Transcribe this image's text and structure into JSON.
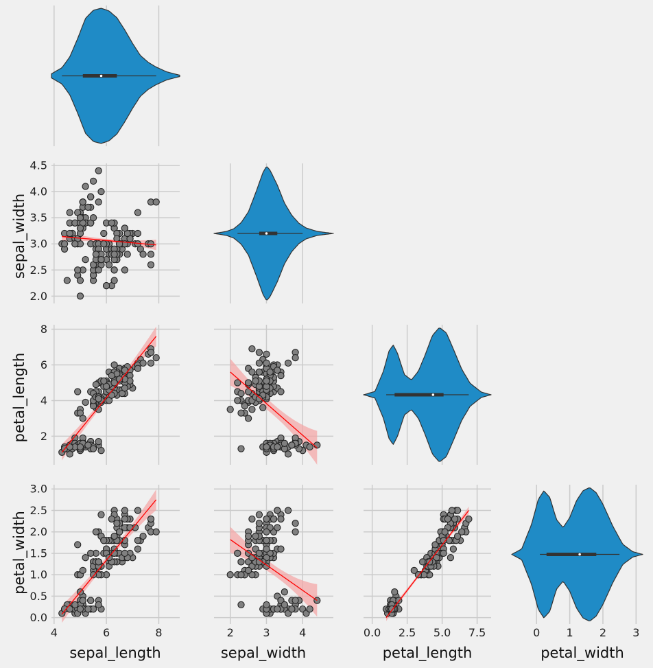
{
  "chart_data": {
    "type": "scatter",
    "title": "",
    "layout": "pairplot-lower-corner",
    "variables": [
      "sepal_length",
      "sepal_width",
      "petal_length",
      "petal_width"
    ],
    "diag_kind": "violin",
    "grid": true,
    "colors": {
      "background": "#f0f0f0",
      "points": "#808080",
      "violin": "#1f8bc6",
      "regression": "#ff0000",
      "ci_band": "#f4a3a3"
    },
    "axes": {
      "sepal_length": {
        "lim": [
          3.9,
          8.8
        ],
        "ticks": [
          4,
          6,
          8
        ],
        "tick_labels": [
          "4",
          "6",
          "8"
        ]
      },
      "sepal_width": {
        "lim": [
          1.55,
          4.85
        ],
        "ticks": [
          2,
          3,
          4
        ],
        "tick_labels": [
          "2",
          "3",
          "4"
        ],
        "row_ticks": [
          2.0,
          2.5,
          3.0,
          3.5,
          4.0,
          4.5
        ],
        "row_tick_labels": [
          "2.0",
          "2.5",
          "3.0",
          "3.5",
          "4.0",
          "4.5"
        ],
        "row_lim": [
          1.86,
          4.54
        ]
      },
      "petal_length": {
        "lim": [
          -0.62,
          8.5
        ],
        "ticks": [
          0.0,
          2.5,
          5.0,
          7.5
        ],
        "tick_labels": [
          "0.0",
          "2.5",
          "5.0",
          "7.5"
        ],
        "row_ticks": [
          2,
          4,
          6,
          8
        ],
        "row_tick_labels": [
          "2",
          "4",
          "6",
          "8"
        ],
        "row_lim": [
          0.4,
          8.25
        ]
      },
      "petal_width": {
        "lim": [
          -0.75,
          3.2
        ],
        "ticks": [
          0,
          1,
          2,
          3
        ],
        "tick_labels": [
          "0",
          "1",
          "2",
          "3"
        ],
        "row_ticks": [
          0.0,
          0.5,
          1.0,
          1.5,
          2.0,
          2.5,
          3.0
        ],
        "row_tick_labels": [
          "0.0",
          "0.5",
          "1.0",
          "1.5",
          "2.0",
          "2.5",
          "3.0"
        ],
        "row_lim": [
          -0.15,
          3.1
        ]
      }
    },
    "violins": [
      {
        "var": "sepal_length",
        "range": [
          3.9,
          8.8
        ],
        "q1": 5.1,
        "median": 5.8,
        "q3": 6.4,
        "whisker": [
          4.3,
          7.9
        ],
        "density_x": [
          3.9,
          4.3,
          4.6,
          4.9,
          5.2,
          5.5,
          5.8,
          6.1,
          6.4,
          6.7,
          7.0,
          7.3,
          7.6,
          7.9,
          8.3,
          8.8
        ],
        "density": [
          0.03,
          0.12,
          0.28,
          0.55,
          0.85,
          0.97,
          1.0,
          0.96,
          0.86,
          0.68,
          0.48,
          0.3,
          0.2,
          0.13,
          0.06,
          0.01
        ]
      },
      {
        "var": "sepal_width",
        "range": [
          1.55,
          4.85
        ],
        "q1": 2.8,
        "median": 3.0,
        "q3": 3.3,
        "whisker": [
          2.2,
          4.0
        ],
        "density_x": [
          1.55,
          1.9,
          2.1,
          2.3,
          2.5,
          2.7,
          2.9,
          3.0,
          3.1,
          3.3,
          3.5,
          3.7,
          3.9,
          4.1,
          4.4,
          4.85
        ],
        "density": [
          0.0,
          0.03,
          0.07,
          0.16,
          0.32,
          0.6,
          0.9,
          1.0,
          0.94,
          0.72,
          0.45,
          0.27,
          0.15,
          0.08,
          0.03,
          0.0
        ]
      },
      {
        "var": "petal_length",
        "range": [
          -0.62,
          8.5
        ],
        "q1": 1.6,
        "median": 4.35,
        "q3": 5.1,
        "whisker": [
          1.0,
          6.9
        ],
        "density_x": [
          -0.6,
          0.2,
          0.8,
          1.2,
          1.5,
          1.8,
          2.3,
          2.8,
          3.3,
          3.8,
          4.3,
          4.8,
          5.3,
          5.8,
          6.4,
          7.0,
          7.8,
          8.5
        ],
        "density": [
          0.0,
          0.05,
          0.35,
          0.65,
          0.74,
          0.62,
          0.3,
          0.22,
          0.35,
          0.6,
          0.88,
          1.0,
          0.92,
          0.68,
          0.38,
          0.17,
          0.04,
          0.0
        ]
      },
      {
        "var": "petal_width",
        "range": [
          -0.75,
          3.2
        ],
        "q1": 0.3,
        "median": 1.3,
        "q3": 1.8,
        "whisker": [
          0.1,
          2.5
        ],
        "density_x": [
          -0.75,
          -0.45,
          -0.15,
          0.05,
          0.22,
          0.4,
          0.6,
          0.8,
          1.0,
          1.2,
          1.4,
          1.6,
          1.8,
          2.0,
          2.3,
          2.6,
          2.9,
          3.2
        ],
        "density": [
          0.0,
          0.08,
          0.45,
          0.82,
          0.95,
          0.85,
          0.52,
          0.4,
          0.55,
          0.8,
          0.95,
          1.0,
          0.92,
          0.75,
          0.42,
          0.15,
          0.04,
          0.0
        ]
      }
    ],
    "regressions": [
      {
        "x": "sepal_length",
        "y": "sepal_width",
        "line": [
          [
            4.3,
            3.14
          ],
          [
            7.9,
            2.98
          ]
        ],
        "ci_halfwidth_ends": [
          0.09,
          0.1
        ],
        "ci_halfwidth_mid": 0.03
      },
      {
        "x": "sepal_length",
        "y": "petal_length",
        "line": [
          [
            4.3,
            1.1
          ],
          [
            7.9,
            7.6
          ]
        ],
        "ci_halfwidth_ends": [
          0.45,
          0.55
        ],
        "ci_halfwidth_mid": 0.15
      },
      {
        "x": "sepal_length",
        "y": "petal_width",
        "line": [
          [
            4.3,
            0.08
          ],
          [
            7.9,
            2.75
          ]
        ],
        "ci_halfwidth_ends": [
          0.2,
          0.24
        ],
        "ci_halfwidth_mid": 0.07
      },
      {
        "x": "sepal_width",
        "y": "petal_length",
        "line": [
          [
            2.0,
            5.6
          ],
          [
            4.4,
            1.35
          ]
        ],
        "ci_halfwidth_ends": [
          0.75,
          0.95
        ],
        "ci_halfwidth_mid": 0.3
      },
      {
        "x": "sepal_width",
        "y": "petal_width",
        "line": [
          [
            2.0,
            1.82
          ],
          [
            4.4,
            0.4
          ]
        ],
        "ci_halfwidth_ends": [
          0.3,
          0.38
        ],
        "ci_halfwidth_mid": 0.12
      },
      {
        "x": "petal_length",
        "y": "petal_width",
        "line": [
          [
            1.0,
            0.0
          ],
          [
            6.9,
            2.5
          ]
        ],
        "ci_halfwidth_ends": [
          0.08,
          0.09
        ],
        "ci_halfwidth_mid": 0.03
      }
    ],
    "scatter_points": {
      "sepal_length": [
        5.1,
        4.9,
        4.7,
        4.6,
        5.0,
        5.4,
        4.6,
        5.0,
        4.4,
        4.9,
        5.4,
        4.8,
        4.8,
        4.3,
        5.8,
        5.7,
        5.4,
        5.1,
        5.7,
        5.1,
        5.4,
        5.1,
        4.6,
        5.1,
        4.8,
        5.0,
        5.0,
        5.2,
        5.2,
        4.7,
        4.8,
        5.4,
        5.2,
        5.5,
        4.9,
        5.0,
        5.5,
        4.9,
        4.4,
        5.1,
        5.0,
        4.5,
        4.4,
        5.0,
        5.1,
        4.8,
        5.1,
        4.6,
        5.3,
        5.0,
        7.0,
        6.4,
        6.9,
        5.5,
        6.5,
        5.7,
        6.3,
        4.9,
        6.6,
        5.2,
        5.0,
        5.9,
        6.0,
        6.1,
        5.6,
        6.7,
        5.6,
        5.8,
        6.2,
        5.6,
        5.9,
        6.1,
        6.3,
        6.1,
        6.4,
        6.6,
        6.8,
        6.7,
        6.0,
        5.7,
        5.5,
        5.5,
        5.8,
        6.0,
        5.4,
        6.0,
        6.7,
        6.3,
        5.6,
        5.5,
        5.5,
        6.1,
        5.8,
        5.0,
        5.6,
        5.7,
        5.7,
        6.2,
        5.1,
        5.7,
        6.3,
        5.8,
        7.1,
        6.3,
        6.5,
        7.6,
        4.9,
        7.3,
        6.7,
        7.2,
        6.5,
        6.4,
        6.8,
        5.7,
        5.8,
        6.4,
        6.5,
        7.7,
        7.7,
        6.0,
        6.9,
        5.6,
        7.7,
        6.3,
        6.7,
        7.2,
        6.2,
        6.1,
        6.4,
        7.2,
        7.4,
        7.9,
        6.4,
        6.3,
        6.1,
        7.7,
        6.3,
        6.4,
        6.0,
        6.9,
        6.7,
        6.9,
        5.8,
        6.8,
        6.7,
        6.7,
        6.3,
        6.5,
        6.2,
        5.9
      ],
      "sepal_width": [
        3.5,
        3.0,
        3.2,
        3.1,
        3.6,
        3.9,
        3.4,
        3.4,
        2.9,
        3.1,
        3.7,
        3.4,
        3.0,
        3.0,
        4.0,
        4.4,
        3.9,
        3.5,
        3.8,
        3.8,
        3.4,
        3.7,
        3.6,
        3.3,
        3.4,
        3.0,
        3.4,
        3.5,
        3.4,
        3.2,
        3.1,
        3.4,
        4.1,
        4.2,
        3.1,
        3.2,
        3.5,
        3.6,
        3.0,
        3.4,
        3.5,
        2.3,
        3.2,
        3.5,
        3.8,
        3.0,
        3.8,
        3.2,
        3.7,
        3.3,
        3.2,
        3.2,
        3.1,
        2.3,
        2.8,
        2.8,
        3.3,
        2.4,
        2.9,
        2.7,
        2.0,
        3.0,
        2.2,
        2.9,
        2.9,
        3.1,
        3.0,
        2.7,
        2.2,
        2.5,
        3.2,
        2.8,
        2.5,
        2.8,
        2.9,
        3.0,
        2.8,
        3.0,
        2.9,
        2.6,
        2.4,
        2.4,
        2.7,
        2.7,
        3.0,
        3.4,
        3.1,
        2.3,
        3.0,
        2.5,
        2.6,
        3.0,
        2.6,
        2.3,
        2.7,
        3.0,
        2.9,
        2.9,
        2.5,
        2.8,
        3.3,
        2.7,
        3.0,
        2.9,
        3.0,
        3.0,
        2.5,
        2.9,
        2.5,
        3.6,
        3.2,
        2.7,
        3.0,
        2.5,
        2.8,
        3.2,
        3.0,
        3.8,
        2.6,
        2.2,
        3.2,
        2.8,
        2.8,
        2.7,
        3.3,
        3.2,
        2.8,
        3.0,
        2.8,
        3.0,
        2.8,
        3.8,
        2.8,
        2.8,
        2.6,
        3.0,
        3.4,
        3.1,
        3.0,
        3.1,
        3.1,
        3.1,
        2.7,
        3.2,
        3.3,
        3.0,
        2.5,
        3.0,
        3.4,
        3.0
      ],
      "petal_length": [
        1.4,
        1.4,
        1.3,
        1.5,
        1.4,
        1.7,
        1.4,
        1.5,
        1.4,
        1.5,
        1.5,
        1.6,
        1.4,
        1.1,
        1.2,
        1.5,
        1.3,
        1.4,
        1.7,
        1.5,
        1.7,
        1.5,
        1.0,
        1.7,
        1.9,
        1.6,
        1.6,
        1.5,
        1.4,
        1.6,
        1.6,
        1.5,
        1.5,
        1.4,
        1.5,
        1.2,
        1.3,
        1.4,
        1.3,
        1.5,
        1.3,
        1.3,
        1.3,
        1.6,
        1.9,
        1.4,
        1.6,
        1.4,
        1.5,
        1.4,
        4.7,
        4.5,
        4.9,
        4.0,
        4.6,
        4.5,
        4.7,
        3.3,
        4.6,
        3.9,
        3.5,
        4.2,
        4.0,
        4.7,
        3.6,
        4.4,
        4.5,
        4.1,
        4.5,
        3.9,
        4.8,
        4.0,
        4.9,
        4.7,
        4.3,
        4.4,
        4.8,
        5.0,
        4.5,
        3.5,
        3.8,
        3.7,
        3.9,
        5.1,
        4.5,
        4.5,
        4.7,
        4.4,
        4.1,
        4.0,
        4.4,
        4.6,
        4.0,
        3.3,
        4.2,
        4.2,
        4.2,
        4.3,
        3.0,
        4.1,
        6.0,
        5.1,
        5.9,
        5.6,
        5.8,
        6.6,
        4.5,
        6.3,
        5.8,
        6.1,
        5.1,
        5.3,
        5.5,
        5.0,
        5.1,
        5.3,
        5.5,
        6.7,
        6.9,
        5.0,
        5.7,
        4.9,
        6.7,
        4.9,
        5.7,
        6.0,
        4.8,
        4.9,
        5.6,
        5.8,
        6.1,
        6.4,
        5.6,
        5.1,
        5.6,
        6.1,
        5.6,
        5.5,
        4.8,
        5.4,
        5.6,
        5.1,
        5.1,
        5.9,
        5.7,
        5.2,
        5.0,
        5.2,
        5.4,
        5.1
      ],
      "petal_width": [
        0.2,
        0.2,
        0.2,
        0.2,
        0.2,
        0.4,
        0.3,
        0.2,
        0.2,
        0.1,
        0.2,
        0.2,
        0.1,
        0.1,
        0.2,
        0.4,
        0.4,
        0.3,
        0.3,
        0.3,
        0.2,
        0.4,
        0.2,
        0.5,
        0.2,
        0.2,
        0.4,
        0.2,
        0.2,
        0.2,
        0.2,
        0.4,
        0.1,
        0.2,
        0.2,
        0.2,
        0.2,
        0.1,
        0.2,
        0.2,
        0.3,
        0.3,
        0.2,
        0.6,
        0.4,
        0.3,
        0.2,
        0.2,
        0.2,
        0.2,
        1.4,
        1.5,
        1.5,
        1.3,
        1.5,
        1.3,
        1.6,
        1.0,
        1.3,
        1.4,
        1.0,
        1.5,
        1.0,
        1.4,
        1.3,
        1.4,
        1.5,
        1.0,
        1.5,
        1.1,
        1.8,
        1.3,
        1.5,
        1.2,
        1.3,
        1.4,
        1.4,
        1.7,
        1.5,
        1.0,
        1.1,
        1.0,
        1.2,
        1.6,
        1.5,
        1.6,
        1.5,
        1.3,
        1.3,
        1.3,
        1.2,
        1.4,
        1.2,
        1.0,
        1.3,
        1.2,
        1.3,
        1.3,
        1.1,
        1.3,
        2.5,
        1.9,
        2.1,
        1.8,
        2.2,
        2.1,
        1.7,
        1.8,
        1.8,
        2.5,
        2.0,
        1.9,
        2.1,
        2.0,
        2.4,
        2.3,
        1.8,
        2.2,
        2.3,
        1.5,
        2.3,
        2.0,
        2.0,
        1.8,
        2.1,
        1.8,
        1.8,
        1.8,
        2.1,
        1.6,
        1.9,
        2.0,
        2.2,
        1.5,
        1.4,
        2.3,
        2.4,
        1.8,
        1.8,
        2.1,
        2.4,
        2.3,
        1.9,
        2.3,
        2.5,
        2.3,
        1.9,
        2.0,
        2.3,
        1.8
      ]
    }
  },
  "labels": {
    "x": [
      "sepal_length",
      "sepal_width",
      "petal_length",
      "petal_width"
    ],
    "y": [
      "sepal_width",
      "petal_length",
      "petal_width"
    ]
  }
}
